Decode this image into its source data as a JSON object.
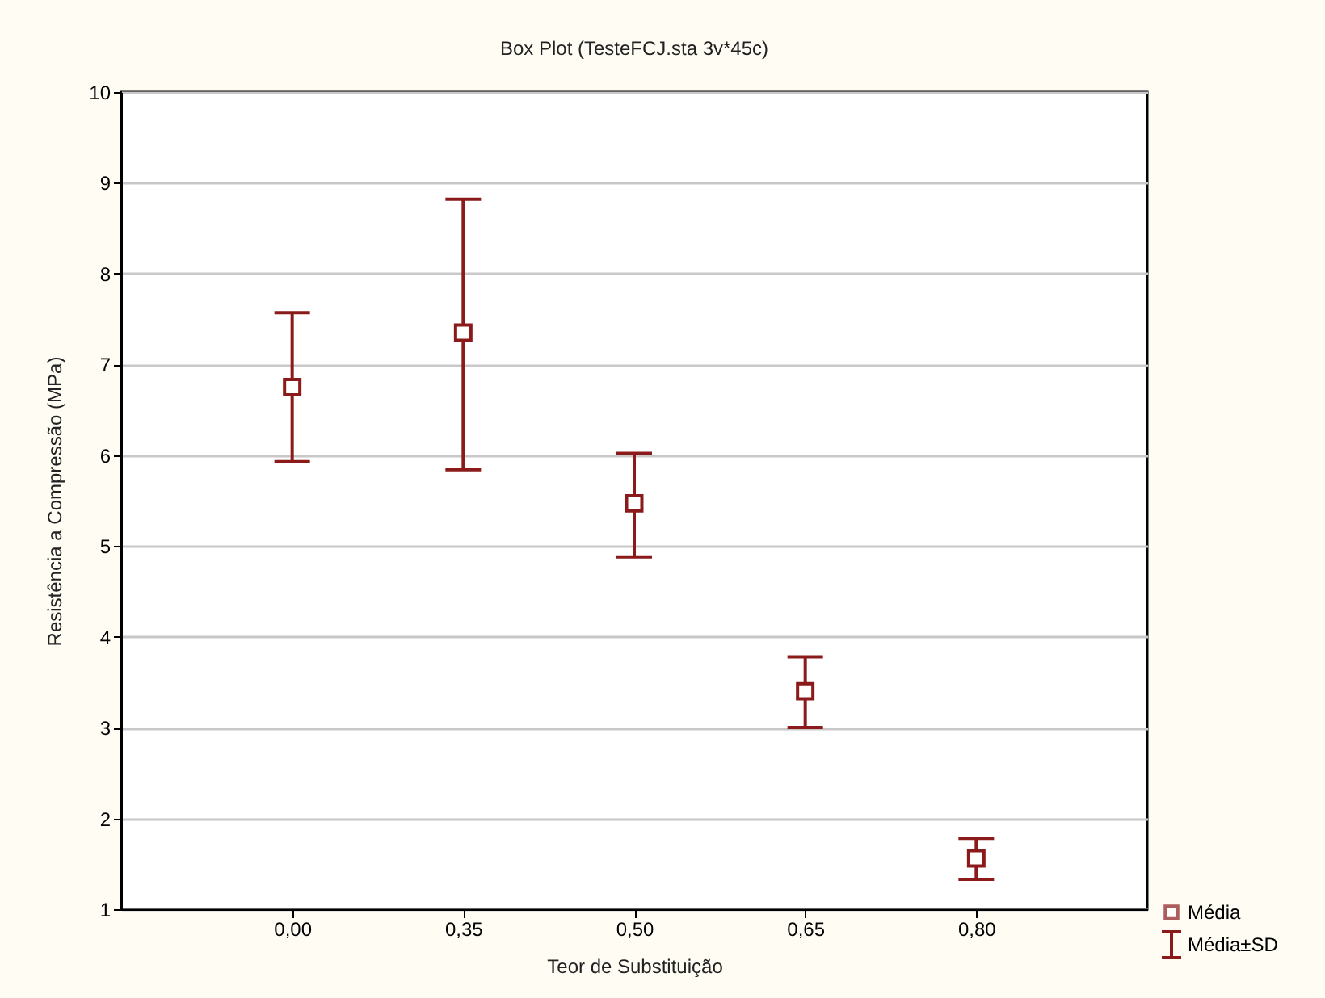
{
  "chart_data": {
    "type": "scatter",
    "title": "Box Plot (TesteFCJ.sta 3v*45c)",
    "xlabel": "Teor de Substituição",
    "ylabel": "Resistência a Compressão (MPa)",
    "categories": [
      "0,00",
      "0,35",
      "0,50",
      "0,65",
      "0,80"
    ],
    "series": [
      {
        "name": "Média",
        "color": "#8b1a1a",
        "values": [
          6.75,
          7.35,
          5.47,
          3.4,
          1.56
        ],
        "errors": [
          [
            5.93,
            7.57
          ],
          [
            5.84,
            8.82
          ],
          [
            4.88,
            6.02
          ],
          [
            3.0,
            3.78
          ],
          [
            1.33,
            1.78
          ]
        ]
      }
    ],
    "annotations": [
      "Média±SD"
    ],
    "ylim": [
      1,
      10
    ],
    "yticks": [
      1,
      2,
      3,
      4,
      5,
      6,
      7,
      8,
      9,
      10
    ],
    "grid": "y",
    "marker": "square",
    "legend": "bottom right"
  }
}
